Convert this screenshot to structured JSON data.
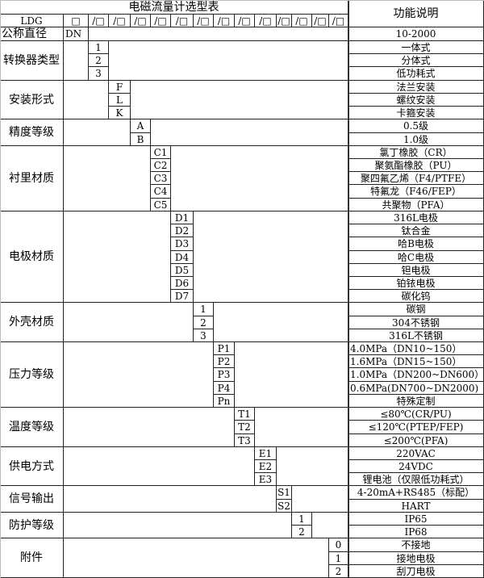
{
  "title": "电磁流量计选型表",
  "desc_header": "功能说明",
  "header_row": {
    "model": "LDG",
    "cells": [
      "□",
      "/□",
      "/□",
      "/□",
      "/□",
      "/□",
      "/□",
      "/□",
      "/□",
      "/□",
      "/□",
      "/□",
      "/□",
      "/□"
    ]
  },
  "nominal": {
    "label": "公称直径",
    "code": "DN",
    "desc": "10-2000"
  },
  "groups": [
    {
      "label": "转换器类型",
      "options": [
        {
          "code": "1",
          "desc": "一体式"
        },
        {
          "code": "2",
          "desc": "分体式"
        },
        {
          "code": "3",
          "desc": "低功耗式"
        }
      ]
    },
    {
      "label": "安装形式",
      "options": [
        {
          "code": "F",
          "desc": "法兰安装"
        },
        {
          "code": "L",
          "desc": "螺纹安装"
        },
        {
          "code": "K",
          "desc": "卡箍安装"
        }
      ]
    },
    {
      "label": "精度等级",
      "options": [
        {
          "code": "A",
          "desc": "0.5级"
        },
        {
          "code": "B",
          "desc": "1.0级"
        }
      ]
    },
    {
      "label": "衬里材质",
      "options": [
        {
          "code": "C1",
          "desc": "氯丁橡胶（CR）"
        },
        {
          "code": "C2",
          "desc": "聚氨酯橡胶（PU）"
        },
        {
          "code": "C3",
          "desc": "聚四氟乙烯（F4/PTFE）"
        },
        {
          "code": "C4",
          "desc": "特氟龙（F46/FEP）"
        },
        {
          "code": "C5",
          "desc": "共聚物（PFA）"
        }
      ]
    },
    {
      "label": "电极材质",
      "options": [
        {
          "code": "D1",
          "desc": "316L电极"
        },
        {
          "code": "D2",
          "desc": "钛合金"
        },
        {
          "code": "D3",
          "desc": "哈B电极"
        },
        {
          "code": "D4",
          "desc": "哈C电极"
        },
        {
          "code": "D5",
          "desc": "钽电极"
        },
        {
          "code": "D6",
          "desc": "铂铱电极"
        },
        {
          "code": "D7",
          "desc": "碳化钨"
        }
      ]
    },
    {
      "label": "外壳材质",
      "options": [
        {
          "code": "1",
          "desc": "碳钢"
        },
        {
          "code": "2",
          "desc": "304不锈钢"
        },
        {
          "code": "3",
          "desc": "316L不锈钢"
        }
      ]
    },
    {
      "label": "压力等级",
      "options": [
        {
          "code": "P1",
          "desc": "4.0MPa（DN10~150）"
        },
        {
          "code": "P2",
          "desc": "1.6MPa（DN15~150）"
        },
        {
          "code": "P3",
          "desc": "1.0MPa（DN200~DN600）"
        },
        {
          "code": "P4",
          "desc": "0.6MPa(DN700~DN2000)"
        },
        {
          "code": "Pn",
          "desc": "特殊定制"
        }
      ]
    },
    {
      "label": "温度等级",
      "options": [
        {
          "code": "T1",
          "desc": "≤80℃(CR/PU)"
        },
        {
          "code": "T2",
          "desc": "≤120℃(PTEP/FEP)"
        },
        {
          "code": "T3",
          "desc": "≤200℃(PFA)"
        }
      ]
    },
    {
      "label": "供电方式",
      "options": [
        {
          "code": "E1",
          "desc": "220VAC"
        },
        {
          "code": "E2",
          "desc": "24VDC"
        },
        {
          "code": "E3",
          "desc": "锂电池（仅限低功耗式）"
        }
      ]
    },
    {
      "label": "信号输出",
      "options": [
        {
          "code": "S1",
          "desc": "4-20mA+RS485（标配）"
        },
        {
          "code": "S2",
          "desc": "HART"
        }
      ]
    },
    {
      "label": "防护等级",
      "options": [
        {
          "code": "1",
          "desc": "IP65"
        },
        {
          "code": "2",
          "desc": "IP68"
        }
      ]
    },
    {
      "label": "附件",
      "options": [
        {
          "code": "0",
          "desc": "不接地"
        },
        {
          "code": "1",
          "desc": "接地电极"
        },
        {
          "code": "2",
          "desc": "刮刀电极"
        }
      ]
    }
  ]
}
